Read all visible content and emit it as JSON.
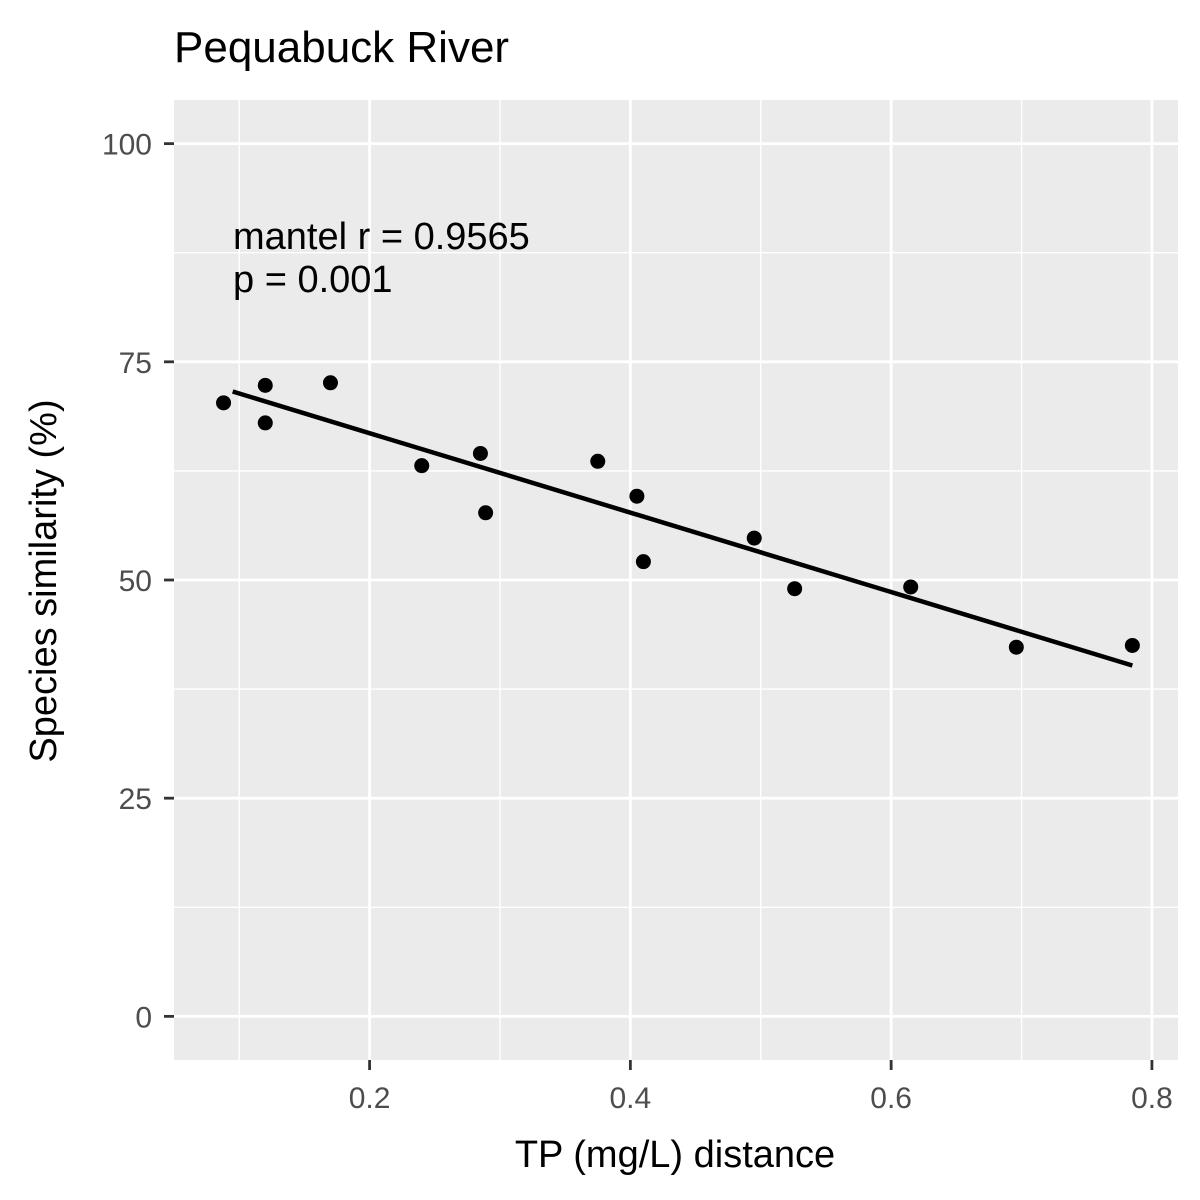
{
  "chart_data": {
    "type": "scatter",
    "title": "Pequabuck River",
    "xlabel": "TP (mg/L) distance",
    "ylabel": "Species similarity (%)",
    "xlim": [
      0.05,
      0.82
    ],
    "ylim": [
      -5,
      105
    ],
    "x_ticks": [
      0.2,
      0.4,
      0.6,
      0.8
    ],
    "x_tick_labels": [
      "0.2",
      "0.4",
      "0.6",
      "0.8"
    ],
    "y_ticks": [
      0,
      25,
      50,
      75,
      100
    ],
    "y_tick_labels": [
      "0",
      "25",
      "50",
      "75",
      "100"
    ],
    "grid": true,
    "panel_background": "#ebebeb",
    "grid_color": "#ffffff",
    "point_color": "#000000",
    "points": [
      {
        "x": 0.088,
        "y": 70.3
      },
      {
        "x": 0.12,
        "y": 72.3
      },
      {
        "x": 0.12,
        "y": 68.0
      },
      {
        "x": 0.17,
        "y": 72.6
      },
      {
        "x": 0.24,
        "y": 63.1
      },
      {
        "x": 0.285,
        "y": 64.5
      },
      {
        "x": 0.289,
        "y": 57.7
      },
      {
        "x": 0.375,
        "y": 63.6
      },
      {
        "x": 0.405,
        "y": 59.6
      },
      {
        "x": 0.41,
        "y": 52.1
      },
      {
        "x": 0.495,
        "y": 54.8
      },
      {
        "x": 0.526,
        "y": 49.0
      },
      {
        "x": 0.615,
        "y": 49.2
      },
      {
        "x": 0.696,
        "y": 42.3
      },
      {
        "x": 0.785,
        "y": 42.5
      }
    ],
    "fit_line": {
      "x": [
        0.095,
        0.785
      ],
      "y": [
        71.6,
        40.2
      ]
    },
    "annotations": [
      "mantel r = 0.9565",
      "p = 0.001"
    ]
  }
}
